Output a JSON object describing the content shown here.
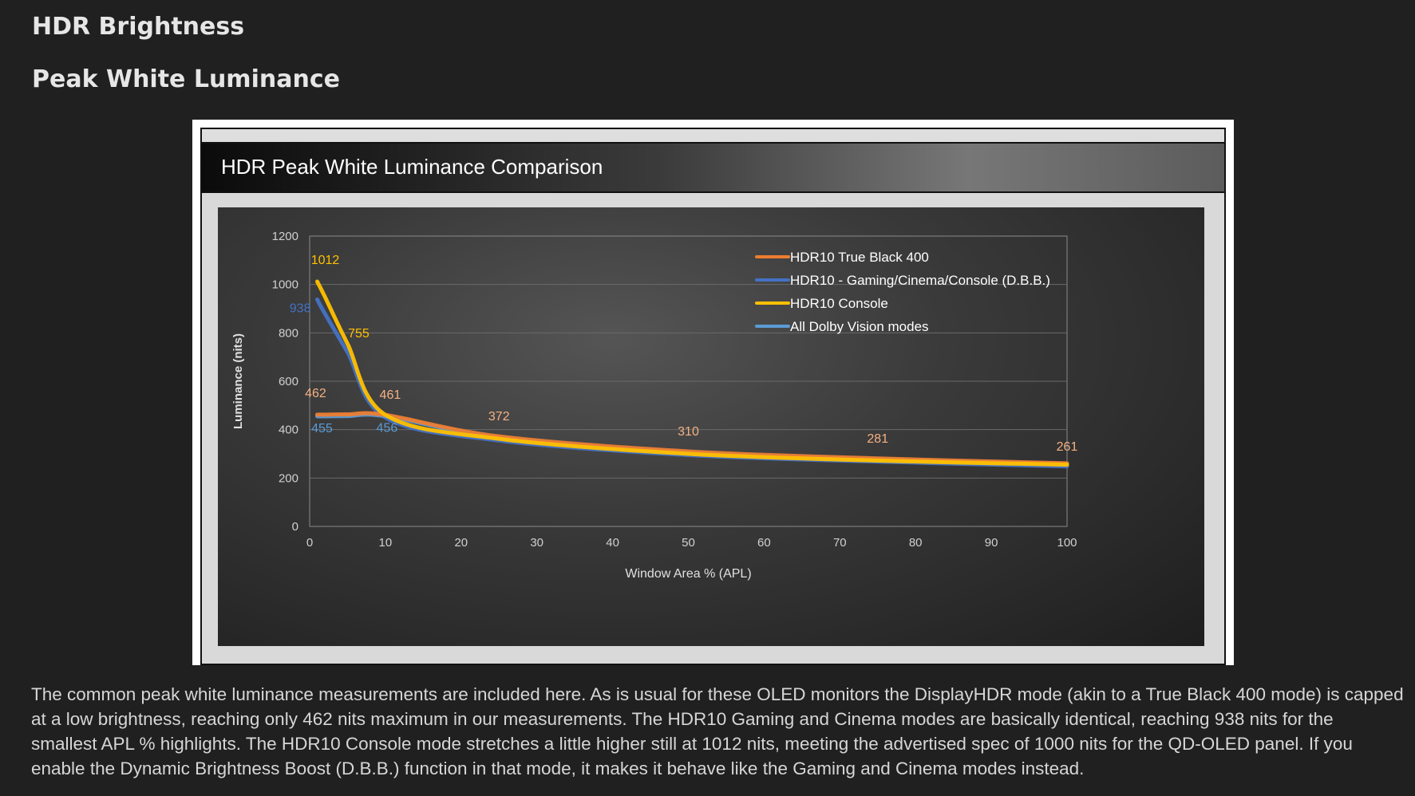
{
  "page": {
    "heading": "HDR Brightness",
    "subheading": "Peak White Luminance",
    "paragraph": "The common peak white luminance measurements are included here. As is usual for these OLED monitors the DisplayHDR mode (akin to a True Black 400 mode) is capped at a low brightness, reaching only 462 nits maximum in our measurements. The HDR10 Gaming and Cinema modes are basically identical, reaching 938 nits for the smallest APL % highlights. The HDR10 Console mode stretches a little higher still at 1012 nits, meeting the advertised spec of 1000 nits for the QD-OLED panel. If you enable the Dynamic Brightness Boost (D.B.B.) function in that mode, it makes it behave like the Gaming and Cinema modes instead."
  },
  "chart_data": {
    "type": "line",
    "title": "HDR Peak White Luminance Comparison",
    "xlabel": "Window Area % (APL)",
    "ylabel": "Luminance (nits)",
    "xlim": [
      0,
      100
    ],
    "ylim": [
      0,
      1200
    ],
    "xticks": [
      "0",
      "10",
      "20",
      "30",
      "40",
      "50",
      "60",
      "70",
      "80",
      "90",
      "100"
    ],
    "yticks": [
      "0",
      "200",
      "400",
      "600",
      "800",
      "1000",
      "1200"
    ],
    "grid": true,
    "legend_position": "top-right",
    "series": [
      {
        "name": "HDR10 True Black 400",
        "color": "#ed7d31",
        "x": [
          1,
          2,
          5,
          10,
          25,
          50,
          75,
          100
        ],
        "y": [
          462,
          462,
          463,
          461,
          372,
          310,
          281,
          261
        ]
      },
      {
        "name": "HDR10 - Gaming/Cinema/Console (D.B.B.)",
        "color": "#4472c4",
        "x": [
          1,
          2,
          5,
          10,
          25,
          50,
          75,
          100
        ],
        "y": [
          938,
          880,
          720,
          450,
          355,
          295,
          268,
          248
        ]
      },
      {
        "name": "HDR10 Console",
        "color": "#ffc000",
        "x": [
          1,
          2,
          5,
          10,
          25,
          50,
          75,
          100
        ],
        "y": [
          1012,
          950,
          755,
          461,
          362,
          300,
          272,
          255
        ]
      },
      {
        "name": "All Dolby Vision modes",
        "color": "#5b9bd5",
        "x": [
          1,
          2,
          5,
          10,
          25,
          50,
          75,
          100
        ],
        "y": [
          455,
          455,
          456,
          456,
          368,
          306,
          278,
          258
        ]
      }
    ],
    "annotations": [
      {
        "text": "1012",
        "x": 1,
        "y": 1012,
        "color": "#ffc000"
      },
      {
        "text": "938",
        "x": 1,
        "y": 938,
        "color": "#4472c4"
      },
      {
        "text": "755",
        "x": 5,
        "y": 755,
        "color": "#ffc000"
      },
      {
        "text": "462",
        "x": 1,
        "y": 462,
        "color": "#f4b183"
      },
      {
        "text": "461",
        "x": 10,
        "y": 461,
        "color": "#f4b183"
      },
      {
        "text": "455",
        "x": 1,
        "y": 455,
        "color": "#5b9bd5"
      },
      {
        "text": "456",
        "x": 10,
        "y": 456,
        "color": "#5b9bd5"
      },
      {
        "text": "372",
        "x": 25,
        "y": 372,
        "color": "#f4b183"
      },
      {
        "text": "310",
        "x": 50,
        "y": 310,
        "color": "#f4b183"
      },
      {
        "text": "281",
        "x": 75,
        "y": 281,
        "color": "#f4b183"
      },
      {
        "text": "261",
        "x": 100,
        "y": 261,
        "color": "#f4b183"
      }
    ]
  }
}
